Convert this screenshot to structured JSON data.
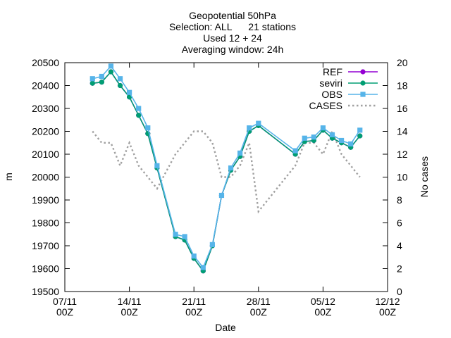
{
  "chart_data": {
    "type": "line",
    "title_lines": [
      "Geopotential 50hPa",
      "Selection: ALL      21 stations",
      "Used 12 + 24",
      "Averaging window: 24h"
    ],
    "xlabel": "Date",
    "ylabel": "m",
    "y2label": "No cases",
    "x_ticks": [
      {
        "date": "2022-11-07",
        "label1": "07/11",
        "label2": "00Z"
      },
      {
        "date": "2022-11-14",
        "label1": "14/11",
        "label2": "00Z"
      },
      {
        "date": "2022-11-21",
        "label1": "21/11",
        "label2": "00Z"
      },
      {
        "date": "2022-11-28",
        "label1": "28/11",
        "label2": "00Z"
      },
      {
        "date": "2022-12-05",
        "label1": "05/12",
        "label2": "00Z"
      },
      {
        "date": "2022-12-12",
        "label1": "12/12",
        "label2": "00Z"
      }
    ],
    "xlim": [
      "2022-11-07",
      "2022-12-12"
    ],
    "ylim": [
      19500,
      20500
    ],
    "y_ticks": [
      19500,
      19600,
      19700,
      19800,
      19900,
      20000,
      20100,
      20200,
      20300,
      20400,
      20500
    ],
    "y2lim": [
      0,
      20
    ],
    "y2_ticks": [
      0,
      2,
      4,
      6,
      8,
      10,
      12,
      14,
      16,
      18,
      20
    ],
    "legend_position": "top-right",
    "grid": false,
    "series": [
      {
        "name": "REF",
        "color": "#9400d3",
        "marker": "filled-circle",
        "style": "solid",
        "axis": "left",
        "x": [
          "2022-11-10",
          "2022-11-11",
          "2022-11-12",
          "2022-11-13",
          "2022-11-14",
          "2022-11-15",
          "2022-11-16",
          "2022-11-17",
          "2022-11-19",
          "2022-11-20",
          "2022-11-21",
          "2022-11-22",
          "2022-11-23",
          "2022-11-24",
          "2022-11-25",
          "2022-11-26",
          "2022-11-27",
          "2022-11-28",
          "2022-12-02",
          "2022-12-03",
          "2022-12-04",
          "2022-12-05",
          "2022-12-06",
          "2022-12-07",
          "2022-12-08",
          "2022-12-09"
        ],
        "y": [
          20410,
          20415,
          20460,
          20400,
          20350,
          20270,
          20190,
          20040,
          19740,
          19725,
          19645,
          19590,
          19700,
          19920,
          20030,
          20090,
          20200,
          20225,
          20100,
          20155,
          20160,
          20205,
          20170,
          20150,
          20130,
          20180
        ]
      },
      {
        "name": "seviri",
        "color": "#009e73",
        "marker": "filled-circle",
        "style": "solid",
        "axis": "left",
        "x": [
          "2022-11-10",
          "2022-11-11",
          "2022-11-12",
          "2022-11-13",
          "2022-11-14",
          "2022-11-15",
          "2022-11-16",
          "2022-11-17",
          "2022-11-19",
          "2022-11-20",
          "2022-11-21",
          "2022-11-22",
          "2022-11-23",
          "2022-11-24",
          "2022-11-25",
          "2022-11-26",
          "2022-11-27",
          "2022-11-28",
          "2022-12-02",
          "2022-12-03",
          "2022-12-04",
          "2022-12-05",
          "2022-12-06",
          "2022-12-07",
          "2022-12-08",
          "2022-12-09"
        ],
        "y": [
          20410,
          20415,
          20460,
          20400,
          20350,
          20270,
          20190,
          20040,
          19740,
          19725,
          19645,
          19590,
          19700,
          19920,
          20030,
          20090,
          20200,
          20225,
          20100,
          20155,
          20160,
          20205,
          20170,
          20150,
          20130,
          20180
        ]
      },
      {
        "name": "OBS",
        "color": "#56b4e9",
        "marker": "filled-square",
        "style": "solid",
        "axis": "left",
        "x": [
          "2022-11-10",
          "2022-11-11",
          "2022-11-12",
          "2022-11-13",
          "2022-11-14",
          "2022-11-15",
          "2022-11-16",
          "2022-11-17",
          "2022-11-19",
          "2022-11-20",
          "2022-11-21",
          "2022-11-22",
          "2022-11-23",
          "2022-11-24",
          "2022-11-25",
          "2022-11-26",
          "2022-11-27",
          "2022-11-28",
          "2022-12-02",
          "2022-12-03",
          "2022-12-04",
          "2022-12-05",
          "2022-12-06",
          "2022-12-07",
          "2022-12-08",
          "2022-12-09"
        ],
        "y": [
          20430,
          20440,
          20485,
          20430,
          20370,
          20300,
          20215,
          20050,
          19750,
          19740,
          19655,
          19605,
          19705,
          19920,
          20040,
          20105,
          20215,
          20235,
          20115,
          20170,
          20175,
          20215,
          20185,
          20160,
          20145,
          20205
        ]
      },
      {
        "name": "CASES",
        "color": "#a0a0a0",
        "marker": "none",
        "style": "dotted",
        "axis": "right",
        "x": [
          "2022-11-10",
          "2022-11-11",
          "2022-11-12",
          "2022-11-13",
          "2022-11-14",
          "2022-11-15",
          "2022-11-16",
          "2022-11-17",
          "2022-11-19",
          "2022-11-20",
          "2022-11-21",
          "2022-11-22",
          "2022-11-23",
          "2022-11-24",
          "2022-11-25",
          "2022-11-26",
          "2022-11-27",
          "2022-11-28",
          "2022-12-02",
          "2022-12-03",
          "2022-12-04",
          "2022-12-05",
          "2022-12-06",
          "2022-12-07",
          "2022-12-08",
          "2022-12-09"
        ],
        "y": [
          14,
          13,
          13,
          11,
          13,
          11,
          10,
          9,
          12,
          13,
          14,
          14,
          13,
          10,
          10,
          11,
          13,
          7,
          11,
          13,
          13,
          12,
          14,
          12,
          11,
          10
        ]
      }
    ]
  }
}
